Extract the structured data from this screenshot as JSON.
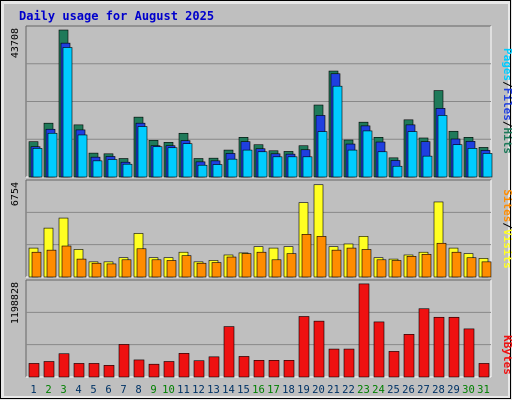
{
  "colors": {
    "background": "#bfbfbf",
    "frame": "#e8e8e8",
    "grid": "#888888",
    "hits": "#1f7a5a",
    "files": "#1f3fe0",
    "pages": "#00ccff",
    "visits": "#ffff22",
    "sites": "#ff8c00",
    "kbytes": "#ee1111",
    "weekday": "#003366",
    "weekend": "#008000",
    "title": "#0000cc"
  },
  "chart_data": {
    "type": "bar",
    "title": "Daily usage for August 2025",
    "categories": [
      "1",
      "2",
      "3",
      "4",
      "5",
      "6",
      "7",
      "8",
      "9",
      "10",
      "11",
      "12",
      "13",
      "14",
      "15",
      "16",
      "17",
      "18",
      "19",
      "20",
      "21",
      "22",
      "23",
      "24",
      "25",
      "26",
      "27",
      "28",
      "29",
      "30",
      "31"
    ],
    "weekend_days": [
      "2",
      "3",
      "9",
      "10",
      "16",
      "17",
      "23",
      "24",
      "30",
      "31"
    ],
    "panels": [
      {
        "ymax_label": "43708",
        "ymax": 43708,
        "series": [
          {
            "name": "Hits",
            "values": [
              10500,
              16000,
              43700,
              15500,
              7100,
              6900,
              5500,
              17800,
              10900,
              10300,
              13000,
              5500,
              5600,
              8000,
              11800,
              9600,
              7800,
              7600,
              9300,
              21400,
              31500,
              11000,
              16300,
              11800,
              5700,
              17000,
              11600,
              25700,
              13600,
              11800,
              8800
            ]
          },
          {
            "name": "Files",
            "values": [
              9000,
              14200,
              39800,
              14000,
              5900,
              6100,
              4400,
              16000,
              9300,
              9300,
              10800,
              4500,
              4800,
              7000,
              10500,
              8400,
              6900,
              6800,
              8100,
              18300,
              30700,
              9800,
              15200,
              10400,
              4900,
              15500,
              10500,
              20400,
              11300,
              10600,
              7900
            ]
          },
          {
            "name": "Pages",
            "values": [
              8500,
              13000,
              38500,
              12500,
              4800,
              5200,
              3800,
              15000,
              9000,
              8700,
              9900,
              3500,
              3700,
              5300,
              8000,
              7500,
              6000,
              6000,
              6000,
              13500,
              27000,
              8000,
              13700,
              7500,
              3200,
              13500,
              6200,
              18300,
              9600,
              8500,
              7000
            ]
          }
        ]
      },
      {
        "ymax_label": "6754",
        "ymax": 6754,
        "series": [
          {
            "name": "Visits",
            "values": [
              2100,
              3550,
              4280,
              2000,
              1100,
              1100,
              1400,
              3160,
              1400,
              1400,
              1800,
              1100,
              1200,
              1600,
              1750,
              2200,
              2100,
              2200,
              5400,
              6700,
              2200,
              2400,
              2950,
              1400,
              1300,
              1600,
              1800,
              5450,
              2100,
              1700,
              1350
            ]
          },
          {
            "name": "Sites",
            "values": [
              1800,
              1950,
              2250,
              1300,
              1000,
              950,
              1250,
              2050,
              1250,
              1200,
              1550,
              1000,
              1050,
              1450,
              1700,
              1800,
              1250,
              1700,
              3100,
              2950,
              1950,
              2100,
              2000,
              1250,
              1200,
              1500,
              1650,
              2450,
              1800,
              1400,
              1100
            ]
          }
        ]
      },
      {
        "ymax_label": "1198828",
        "ymax": 1198828,
        "series": [
          {
            "name": "KBytes",
            "values": [
              175000,
              200000,
              300000,
              175000,
              175000,
              150000,
              420000,
              220000,
              165000,
              200000,
              305000,
              210000,
              260000,
              650000,
              265000,
              215000,
              215000,
              215000,
              780000,
              720000,
              360000,
              360000,
              1200000,
              710000,
              330000,
              550000,
              880000,
              770000,
              770000,
              620000,
              175000
            ]
          }
        ]
      }
    ],
    "legend": {
      "placement": "right",
      "panel1": [
        "Pages",
        "Files",
        "Hits"
      ],
      "panel1_separator": "/",
      "panel2": [
        "Sites",
        "Visits"
      ],
      "panel2_separator": "/",
      "panel3": [
        "KBytes"
      ]
    }
  }
}
